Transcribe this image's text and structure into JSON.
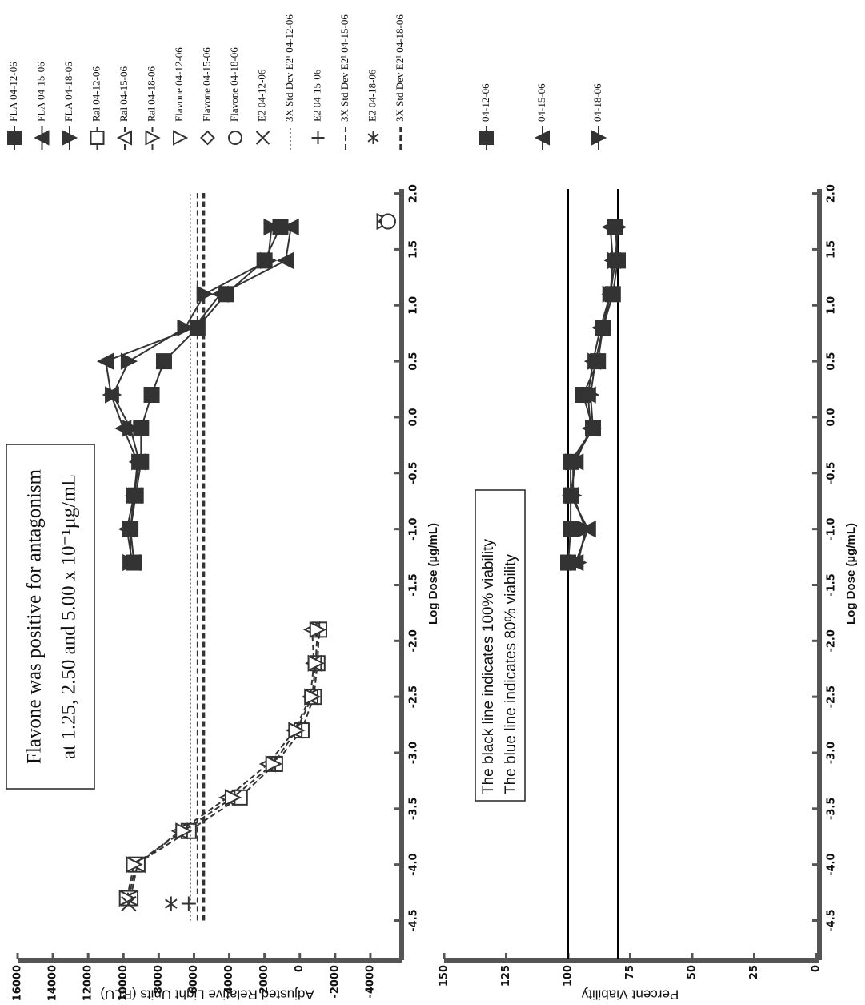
{
  "chart_data": [
    {
      "type": "line",
      "xlabel": "Log Dose (µg/mL)",
      "ylabel": "Adjusted Relative Light Units (RLU)",
      "annotation": [
        "Flavone was positive for antagonism",
        "at 1.25, 2.50 and 5.00 x 10⁻¹µg/mL"
      ],
      "xlim": [
        -4.84,
        2.04
      ],
      "ylim": [
        -5500,
        16000
      ],
      "xticks": [
        -4.5,
        {
          "value": -4,
          "label": "-4.0"
        },
        -3.5,
        {
          "value": -3,
          "label": "-3.0"
        },
        -2.5,
        {
          "value": -2,
          "label": "-2.0"
        },
        -1.5,
        {
          "value": -1,
          "label": "-1.0"
        },
        -0.5,
        {
          "value": 0,
          "label": "0.0"
        },
        0.5,
        {
          "value": 1,
          "label": "1.0"
        },
        1.5,
        {
          "value": 2,
          "label": "2.0"
        }
      ],
      "yticks": [
        16000,
        14000,
        12000,
        10000,
        8000,
        6000,
        4000,
        2000,
        0,
        -2000,
        -4000
      ],
      "series": [
        {
          "name": "FLA 04-12-06",
          "color": "#333",
          "marker": "square",
          "filled": true,
          "line": "solid",
          "x": [
            -1.3,
            -1.0,
            -0.7,
            -0.4,
            -0.1,
            0.2,
            0.5,
            0.8,
            1.1,
            1.4,
            1.7
          ],
          "values": [
            9400,
            9600,
            9300,
            9000,
            9000,
            8400,
            7700,
            5800,
            4200,
            2000,
            1100
          ]
        },
        {
          "name": "FLA 04-15-06",
          "color": "#333",
          "marker": "triangle-up",
          "filled": true,
          "line": "solid",
          "x": [
            -1.3,
            -1.0,
            -0.7,
            -0.4,
            -0.1,
            0.2,
            0.5,
            0.8,
            1.1,
            1.4,
            1.7
          ],
          "values": [
            9500,
            9800,
            9400,
            9200,
            10000,
            10700,
            11000,
            6000,
            4500,
            800,
            500
          ]
        },
        {
          "name": "FLA 04-18-06",
          "color": "#333",
          "marker": "triangle-down",
          "filled": true,
          "line": "solid",
          "x": [
            -1.3,
            -1.0,
            -0.7,
            -0.4,
            -0.1,
            0.2,
            0.5,
            0.8,
            1.1,
            1.4,
            1.7
          ],
          "values": [
            9600,
            9600,
            9400,
            9100,
            9600,
            10600,
            9700,
            6500,
            5400,
            1800,
            1600
          ]
        },
        {
          "name": "Ral 04-12-06",
          "color": "#333",
          "marker": "square",
          "filled": false,
          "line": "dashed",
          "x": [
            -4.3,
            -4.0,
            -3.7,
            -3.4,
            -3.1,
            -2.8,
            -2.5,
            -2.2,
            -1.9
          ],
          "values": [
            9700,
            9300,
            6300,
            3400,
            1400,
            -100,
            -800,
            -1000,
            -1100
          ]
        },
        {
          "name": "Ral 04-15-06",
          "color": "#333",
          "marker": "triangle-up",
          "filled": false,
          "line": "dashed",
          "x": [
            -4.3,
            -4.0,
            -3.7,
            -3.4,
            -3.1,
            -2.8,
            -2.5,
            -2.2,
            -1.9
          ],
          "values": [
            9600,
            9200,
            6800,
            4100,
            1800,
            300,
            -600,
            -800,
            -700
          ]
        },
        {
          "name": "Ral 04-18-06",
          "color": "#333",
          "marker": "triangle-down",
          "filled": false,
          "line": "dashed",
          "x": [
            -4.3,
            -4.0,
            -3.7,
            -3.4,
            -3.1,
            -2.8,
            -2.5,
            -2.2,
            -1.9
          ],
          "values": [
            9800,
            9400,
            6600,
            3800,
            1500,
            200,
            -700,
            -900,
            -1000
          ]
        },
        {
          "name": "Flavone 04-12-06",
          "color": "#333",
          "marker": "triangle-down",
          "filled": false,
          "line": "none",
          "x": [
            1.75
          ],
          "values": [
            -4800
          ]
        },
        {
          "name": "Flavone 04-15-06",
          "color": "#333",
          "marker": "diamond",
          "filled": false,
          "line": "none",
          "x": [
            1.75
          ],
          "values": [
            -4900
          ]
        },
        {
          "name": "Flavone 04-18-06",
          "color": "#333",
          "marker": "circle",
          "filled": false,
          "line": "none",
          "x": [
            1.75
          ],
          "values": [
            -5000
          ]
        },
        {
          "name": "E2 04-12-06",
          "color": "#333",
          "marker": "x",
          "filled": false,
          "line": "none",
          "x": [
            -4.35
          ],
          "values": [
            9700
          ]
        },
        {
          "name": "3X Std Dev E2¹ 04-12-06",
          "color": "#333",
          "line": "dotted",
          "value": 6200
        },
        {
          "name": "E2 04-15-06",
          "color": "#333",
          "marker": "plus",
          "filled": false,
          "line": "none",
          "x": [
            -4.35
          ],
          "values": [
            6300
          ]
        },
        {
          "name": "3X Std Dev E2¹ 04-15-06",
          "color": "#333",
          "line": "dashed",
          "value": 5800
        },
        {
          "name": "E2 04-18-06",
          "color": "#333",
          "marker": "star",
          "filled": false,
          "line": "none",
          "x": [
            -4.35
          ],
          "values": [
            7300
          ]
        },
        {
          "name": "3X Std Dev E2¹ 04-18-06",
          "color": "#333",
          "line": "bold-dashed",
          "value": 5450
        }
      ]
    },
    {
      "type": "line",
      "xlabel": "Log Dose (µg/mL)",
      "ylabel": "Percent Viability",
      "annotation": [
        "The black line indicates 100% viability",
        "The blue line indicates 80% viability"
      ],
      "xlim": [
        -4.84,
        2.04
      ],
      "ylim": [
        0,
        150
      ],
      "xticks": [
        -4.5,
        {
          "value": -4,
          "label": "-4.0"
        },
        -3.5,
        {
          "value": -3,
          "label": "-3.0"
        },
        -2.5,
        {
          "value": -2,
          "label": "-2.0"
        },
        -1.5,
        {
          "value": -1,
          "label": "-1.0"
        },
        -0.5,
        {
          "value": 0,
          "label": "0.0"
        },
        0.5,
        {
          "value": 1,
          "label": "1.0"
        },
        1.5,
        {
          "value": 2,
          "label": "2.0"
        }
      ],
      "yticks": [
        0,
        25,
        50,
        75,
        100,
        125,
        150
      ],
      "reference_lines": [
        {
          "value": 100,
          "color": "#000"
        },
        {
          "value": 80,
          "color": "#000"
        }
      ],
      "series": [
        {
          "name": "04-12-06",
          "color": "#333",
          "marker": "square",
          "filled": true,
          "line": "solid",
          "x": [
            -1.3,
            -1.0,
            -0.7,
            -0.4,
            -0.1,
            0.2,
            0.5,
            0.8,
            1.1,
            1.4,
            1.7
          ],
          "values": [
            100,
            99,
            99,
            99,
            90,
            94,
            88,
            86,
            82,
            80,
            81
          ]
        },
        {
          "name": "04-15-06",
          "color": "#333",
          "marker": "triangle-up",
          "filled": true,
          "line": "solid",
          "x": [
            -1.3,
            -1.0,
            -0.7,
            -0.4,
            -0.1,
            0.2,
            0.5,
            0.8,
            1.1,
            1.4,
            1.7
          ],
          "values": [
            97,
            92,
            99,
            97,
            91,
            92,
            90,
            87,
            83,
            82,
            83
          ]
        },
        {
          "name": "04-18-06",
          "color": "#333",
          "marker": "triangle-down",
          "filled": true,
          "line": "solid",
          "x": [
            -1.3,
            -1.0,
            -0.7,
            -0.4,
            -0.1,
            0.2,
            0.5,
            0.8,
            1.1,
            1.4,
            1.7
          ],
          "values": [
            96,
            93,
            98,
            98,
            90,
            91,
            89,
            86,
            83,
            81,
            80
          ]
        }
      ]
    }
  ]
}
